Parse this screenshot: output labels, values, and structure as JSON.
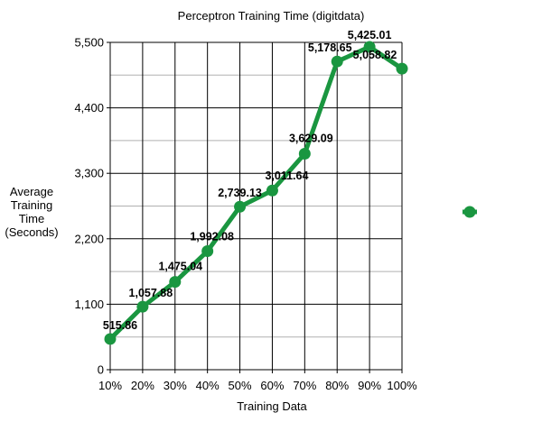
{
  "chart_data": {
    "type": "line",
    "title": "Perceptron Training Time (digitdata)",
    "xlabel": "Training Data",
    "ylabel": [
      "Average",
      "Training",
      "Time",
      "(Seconds)"
    ],
    "categories": [
      "10%",
      "20%",
      "30%",
      "40%",
      "50%",
      "60%",
      "70%",
      "80%",
      "90%",
      "100%"
    ],
    "series": [
      {
        "values": [
          515.86,
          1057.88,
          1475.04,
          1992.08,
          2739.13,
          3011.64,
          3629.09,
          5178.65,
          5425.01,
          5058.82
        ],
        "labels": [
          "515.86",
          "1,057.88",
          "1,475.04",
          "1,992.08",
          "2,739.13",
          "3,011.64",
          "3,629.09",
          "5,178.65",
          "5,425.01",
          "5,058.82"
        ],
        "color": "#1a9640"
      }
    ],
    "yticks": [
      0,
      1100,
      2200,
      3300,
      4400,
      5500
    ],
    "ytick_labels": [
      "0",
      "1,100",
      "2,200",
      "3,300",
      "4,400",
      "5,500"
    ],
    "ylim": [
      0,
      5500
    ],
    "grid": true,
    "legend_placement": "right"
  }
}
